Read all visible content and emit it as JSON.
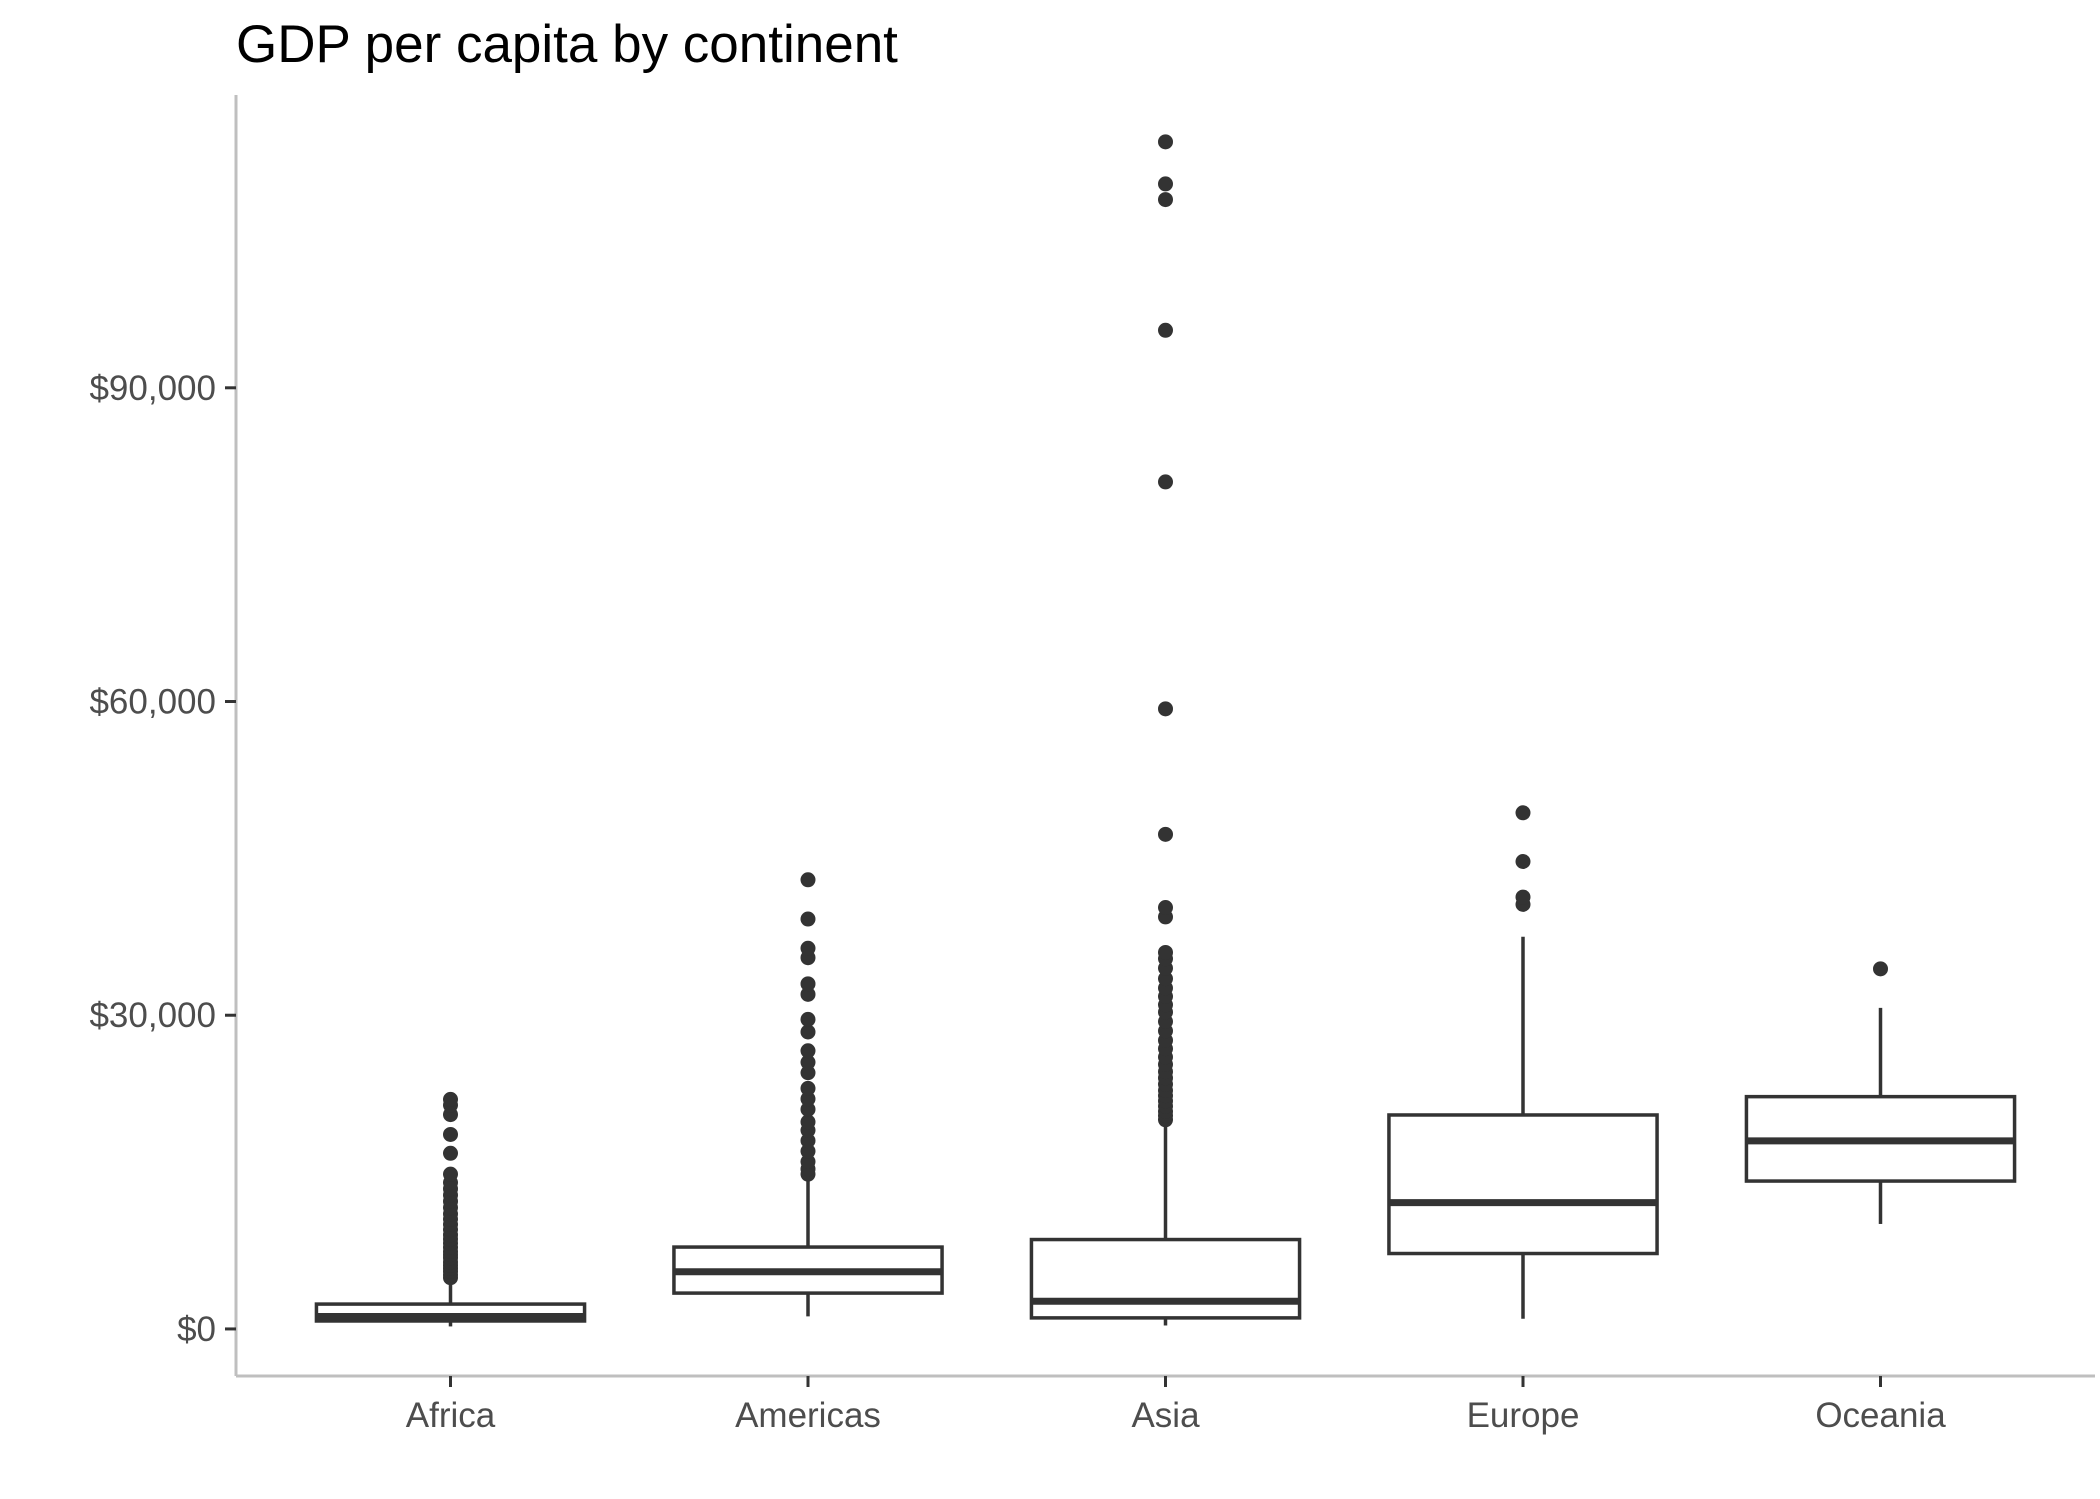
{
  "chart_data": {
    "type": "boxplot",
    "title": "GDP per capita by continent",
    "xlabel": "",
    "ylabel": "",
    "ylim": [
      -4500,
      118000
    ],
    "y_ticks": [
      {
        "value": 0,
        "label": "$0"
      },
      {
        "value": 30000,
        "label": "$30,000"
      },
      {
        "value": 60000,
        "label": "$60,000"
      },
      {
        "value": 90000,
        "label": "$90,000"
      }
    ],
    "grid": false,
    "legend": "none",
    "colors": {
      "box_stroke": "#333333",
      "box_fill": "#ffffff",
      "axis": "#bfbfbf",
      "text": "#4d4d4d"
    },
    "categories": [
      "Africa",
      "Americas",
      "Asia",
      "Europe",
      "Oceania"
    ],
    "boxes": [
      {
        "category": "Africa",
        "whisker_low": 241,
        "q1": 761,
        "median": 1192,
        "q3": 2377,
        "whisker_high": 4800,
        "outliers": [
          4900,
          5200,
          5500,
          5800,
          6100,
          6400,
          6800,
          7100,
          7400,
          7800,
          8200,
          8600,
          9000,
          9500,
          10000,
          10500,
          11000,
          11600,
          12200,
          12800,
          13400,
          14000,
          14800,
          16800,
          18600,
          20500,
          21400,
          21951
        ]
      },
      {
        "category": "Americas",
        "whisker_low": 1202,
        "q1": 3428,
        "median": 5466,
        "q3": 7830,
        "whisker_high": 14200,
        "outliers": [
          14800,
          15300,
          16000,
          17000,
          18000,
          19000,
          19800,
          21000,
          22000,
          23000,
          24500,
          25500,
          26600,
          28400,
          29600,
          32000,
          33000,
          35500,
          36400,
          39200,
          42952
        ]
      },
      {
        "category": "Asia",
        "whisker_low": 331,
        "q1": 1057,
        "median": 2646,
        "q3": 8549,
        "whisker_high": 19800,
        "outliers": [
          20000,
          20400,
          20800,
          21300,
          21800,
          22300,
          22800,
          23400,
          24000,
          24600,
          25300,
          26000,
          26800,
          27600,
          28500,
          29400,
          30300,
          31000,
          31800,
          32600,
          33500,
          34500,
          35400,
          36000,
          39400,
          40300,
          47300,
          59300,
          81000,
          95500,
          108000,
          109500,
          113523
        ]
      },
      {
        "category": "Europe",
        "whisker_low": 974,
        "q1": 7213,
        "median": 12082,
        "q3": 20461,
        "whisker_high": 37500,
        "outliers": [
          40600,
          41300,
          44700,
          49357
        ]
      },
      {
        "category": "Oceania",
        "whisker_low": 10040,
        "q1": 14142,
        "median": 17983,
        "q3": 22214,
        "whisker_high": 30700,
        "outliers": [
          34435
        ]
      }
    ]
  }
}
